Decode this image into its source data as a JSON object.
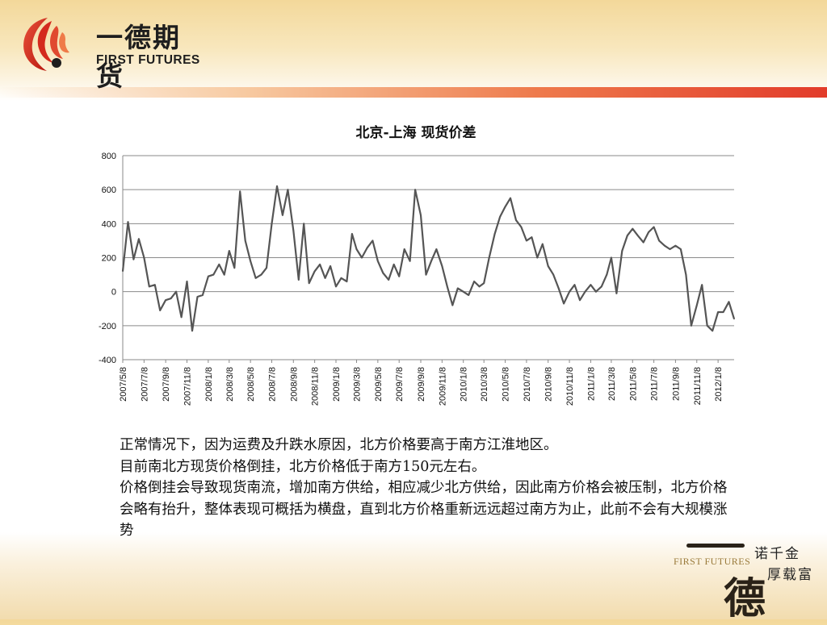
{
  "header": {
    "logo_cn": "一德期货",
    "logo_en": "FIRST FUTURES",
    "colors": {
      "logo_red": "#d42a1e",
      "band_red": "#e23b2a"
    }
  },
  "chart_data": {
    "type": "line",
    "title": "北京-上海 现货价差",
    "xlabel": "",
    "ylabel": "",
    "ylim": [
      -400,
      800
    ],
    "yticks": [
      800,
      600,
      400,
      200,
      0,
      -200,
      -400
    ],
    "grid": true,
    "legend": "none",
    "line_color": "#555555",
    "x_tick_labels": [
      "2007/5/8",
      "2007/7/8",
      "2007/9/8",
      "2007/11/8",
      "2008/1/8",
      "2008/3/8",
      "2008/5/8",
      "2008/7/8",
      "2008/9/8",
      "2008/11/8",
      "2009/1/8",
      "2009/3/8",
      "2009/5/8",
      "2009/7/8",
      "2009/9/8",
      "2009/11/8",
      "2010/1/8",
      "2010/3/8",
      "2010/5/8",
      "2010/7/8",
      "2010/9/8",
      "2010/11/8",
      "2011/1/8",
      "2011/3/8",
      "2011/5/8",
      "2011/7/8",
      "2011/9/8",
      "2011/11/8",
      "2012/1/8"
    ],
    "series": [
      {
        "x": [
          "2007/5/8",
          "2007/5/23",
          "2007/6/8",
          "2007/6/23",
          "2007/7/8",
          "2007/7/23",
          "2007/8/8",
          "2007/8/23",
          "2007/9/8",
          "2007/9/23",
          "2007/10/8",
          "2007/10/23",
          "2007/11/8",
          "2007/11/23",
          "2007/12/8",
          "2007/12/23",
          "2008/1/8",
          "2008/1/23",
          "2008/2/8",
          "2008/2/23",
          "2008/3/8",
          "2008/3/23",
          "2008/4/8",
          "2008/4/23",
          "2008/5/8",
          "2008/5/23",
          "2008/6/8",
          "2008/6/23",
          "2008/7/8",
          "2008/7/23",
          "2008/8/8",
          "2008/8/23",
          "2008/9/8",
          "2008/9/23",
          "2008/10/8",
          "2008/10/23",
          "2008/11/8",
          "2008/11/23",
          "2008/12/8",
          "2008/12/23",
          "2009/1/8",
          "2009/1/23",
          "2009/2/8",
          "2009/2/23",
          "2009/3/8",
          "2009/3/23",
          "2009/4/8",
          "2009/4/23",
          "2009/5/8",
          "2009/5/23",
          "2009/6/8",
          "2009/6/23",
          "2009/7/8",
          "2009/7/23",
          "2009/8/8",
          "2009/8/23",
          "2009/9/8",
          "2009/9/23",
          "2009/10/8",
          "2009/10/23",
          "2009/11/8",
          "2009/11/23",
          "2009/12/8",
          "2009/12/23",
          "2010/1/8",
          "2010/1/23",
          "2010/2/8",
          "2010/2/23",
          "2010/3/8",
          "2010/3/23",
          "2010/4/8",
          "2010/4/23",
          "2010/5/8",
          "2010/5/23",
          "2010/6/8",
          "2010/6/23",
          "2010/7/8",
          "2010/7/23",
          "2010/8/8",
          "2010/8/23",
          "2010/9/8",
          "2010/9/23",
          "2010/10/8",
          "2010/10/23",
          "2010/11/8",
          "2010/11/23",
          "2010/12/8",
          "2010/12/23",
          "2011/1/8",
          "2011/1/23",
          "2011/2/8",
          "2011/2/23",
          "2011/3/8",
          "2011/3/23",
          "2011/4/8",
          "2011/4/23",
          "2011/5/8",
          "2011/5/23",
          "2011/6/8",
          "2011/6/23",
          "2011/7/8",
          "2011/7/23",
          "2011/8/8",
          "2011/8/23",
          "2011/9/8",
          "2011/9/23",
          "2011/10/8",
          "2011/10/23",
          "2011/11/8",
          "2011/11/23",
          "2011/12/8",
          "2011/12/23",
          "2012/1/8",
          "2012/1/23",
          "2012/2/8",
          "2012/2/23"
        ],
        "y": [
          120,
          410,
          190,
          310,
          200,
          30,
          40,
          -110,
          -50,
          -40,
          0,
          -150,
          60,
          -230,
          -30,
          -20,
          90,
          100,
          160,
          100,
          240,
          140,
          590,
          300,
          180,
          80,
          100,
          140,
          400,
          620,
          450,
          600,
          360,
          70,
          400,
          50,
          120,
          160,
          80,
          150,
          30,
          80,
          60,
          340,
          250,
          200,
          260,
          300,
          180,
          110,
          70,
          160,
          90,
          250,
          180,
          600,
          450,
          100,
          180,
          250,
          150,
          30,
          -80,
          20,
          0,
          -20,
          60,
          30,
          50,
          200,
          340,
          440,
          500,
          550,
          420,
          380,
          300,
          320,
          200,
          280,
          150,
          100,
          20,
          -70,
          0,
          40,
          -50,
          0,
          40,
          0,
          30,
          100,
          200,
          -10,
          240,
          330,
          370,
          330,
          290,
          350,
          380,
          300,
          270,
          250,
          270,
          250,
          100,
          -200,
          -80,
          40,
          -200,
          -230,
          -120,
          -120,
          -60,
          -160
        ]
      }
    ]
  },
  "body": {
    "lines": [
      "正常情况下，因为运费及升跌水原因，北方价格要高于南方江淮地区。",
      "目前南北方现货价格倒挂，北方价格低于南方150元左右。",
      "价格倒挂会导致现货南流，增加南方供给，相应减少北方供给，因此南方价格会被压制，北方价格会略有抬升，整体表现可概括为横盘，直到北方价格重新远远超过南方为止，此前不会有大规模涨势"
    ]
  },
  "footer": {
    "brand_en": "FIRST FUTURES",
    "slogan_1": "诺千金",
    "slogan_2": "厚载富",
    "brand_char_1": "一",
    "brand_char_2": "德"
  }
}
